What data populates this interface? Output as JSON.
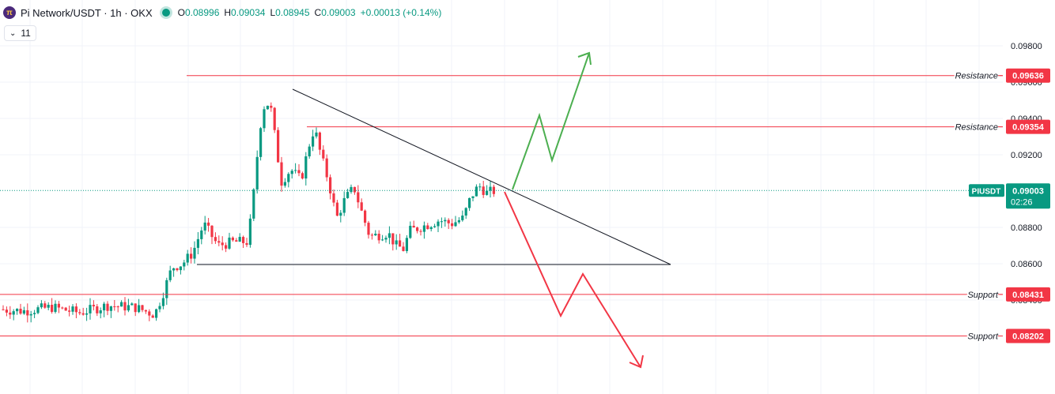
{
  "header": {
    "logo_glyph": "π",
    "title": "Pi Network/USDT · 1h · OKX",
    "ohlc": [
      {
        "k": "O",
        "v": "0.08996"
      },
      {
        "k": "H",
        "v": "0.09034"
      },
      {
        "k": "L",
        "v": "0.08945"
      },
      {
        "k": "C",
        "v": "0.09003"
      },
      {
        "k": "",
        "v": "+0.00013 (+0.14%)"
      }
    ],
    "status_color": "#089981"
  },
  "indicator_button": {
    "chevron": "⌄",
    "count": "11"
  },
  "price_tag": {
    "symbol": "PIUSDT",
    "price": "0.09003",
    "countdown": "02:26",
    "color": "#089981"
  },
  "chart_data": {
    "type": "candlestick",
    "symbol": "PIUSDT",
    "y_ticks": [
      "0.09800",
      "0.09600",
      "0.09400",
      "0.09200",
      "0.08800",
      "0.08600",
      "0.08400"
    ],
    "ylim": [
      0.0797,
      0.0987
    ],
    "current_price": 0.09003,
    "levels": [
      {
        "label": "Resistance",
        "value": "0.09636",
        "price": 0.09636
      },
      {
        "label": "Resistance",
        "value": "0.09354",
        "price": 0.09354
      },
      {
        "label": "Support",
        "value": "0.08431",
        "price": 0.08431
      },
      {
        "label": "Support",
        "value": "0.08202",
        "price": 0.08202
      }
    ],
    "colors": {
      "up": "#089981",
      "down": "#f23645",
      "level": "#f23645",
      "bull_arrow": "#4caf50",
      "bear_arrow": "#f23645",
      "trendline": "#131722",
      "grid": "#f0f3fa"
    }
  }
}
